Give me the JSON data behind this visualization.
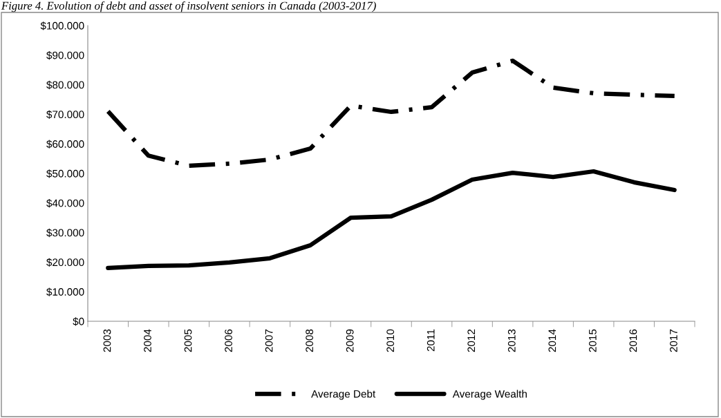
{
  "chart_data": {
    "type": "line",
    "title": "Figure 4. Evolution of debt and asset of insolvent seniors in Canada (2003-2017)",
    "categories": [
      "2003",
      "2004",
      "2005",
      "2006",
      "2007",
      "2008",
      "2009",
      "2010",
      "2011",
      "2012",
      "2013",
      "2014",
      "2015",
      "2016",
      "2017"
    ],
    "series": [
      {
        "name": "Average Debt",
        "color": "#000000",
        "line_style": "dashed",
        "values": [
          71000,
          56000,
          52600,
          53300,
          54700,
          58400,
          72900,
          70800,
          72400,
          84100,
          88100,
          79000,
          77100,
          76600,
          76200
        ]
      },
      {
        "name": "Average Wealth",
        "color": "#000000",
        "line_style": "solid",
        "values": [
          18000,
          18700,
          18900,
          19900,
          21300,
          25700,
          35000,
          35500,
          41100,
          47900,
          50200,
          48800,
          50700,
          47000,
          44400
        ]
      }
    ],
    "ylim": [
      0,
      100000
    ],
    "yticks": [
      {
        "value": 0,
        "label": "$0"
      },
      {
        "value": 10000,
        "label": "$10.000"
      },
      {
        "value": 20000,
        "label": "$20.000"
      },
      {
        "value": 30000,
        "label": "$30.000"
      },
      {
        "value": 40000,
        "label": "$40.000"
      },
      {
        "value": 50000,
        "label": "$50.000"
      },
      {
        "value": 60000,
        "label": "$60.000"
      },
      {
        "value": 70000,
        "label": "$70.000"
      },
      {
        "value": 80000,
        "label": "$80.000"
      },
      {
        "value": 90000,
        "label": "$90.000"
      },
      {
        "value": 100000,
        "label": "$100.000"
      }
    ],
    "grid": false,
    "legend": "bottom",
    "marker": "none"
  }
}
